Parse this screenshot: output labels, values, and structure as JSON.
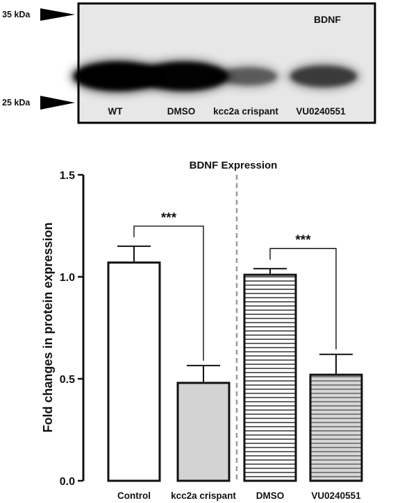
{
  "blot": {
    "label": "BDNF",
    "markers": [
      {
        "label": "35 kDa"
      },
      {
        "label": "25 kDa"
      }
    ],
    "lanes": [
      {
        "label": "WT",
        "intensity": 1.0
      },
      {
        "label": "DMSO",
        "intensity": 0.97
      },
      {
        "label": "kcc2a crispant",
        "intensity": 0.32
      },
      {
        "label": "VU0240551",
        "intensity": 0.52
      }
    ]
  },
  "chart_data": {
    "type": "bar",
    "title": "BDNF Expression",
    "xlabel": "",
    "ylabel": "Fold changes in protein expression",
    "ylim": [
      0,
      1.5
    ],
    "yticks": [
      "0.0",
      "0.5",
      "1.0",
      "1.5"
    ],
    "categories": [
      "Control",
      "kcc2a crispant",
      "DMSO",
      "VU0240551"
    ],
    "values": [
      1.07,
      0.48,
      1.01,
      0.52
    ],
    "errors": [
      0.08,
      0.085,
      0.03,
      0.1
    ],
    "fills": [
      "white",
      "gray",
      "h-stripes",
      "gray-h-stripes"
    ],
    "divider_between": [
      1,
      2
    ],
    "significance": [
      {
        "from": 0,
        "to": 1,
        "label": "***"
      },
      {
        "from": 2,
        "to": 3,
        "label": "***"
      }
    ],
    "colors": {
      "bar_gray": "#d3d3d3",
      "stroke": "#111111",
      "divider": "#9a9a9a"
    }
  }
}
